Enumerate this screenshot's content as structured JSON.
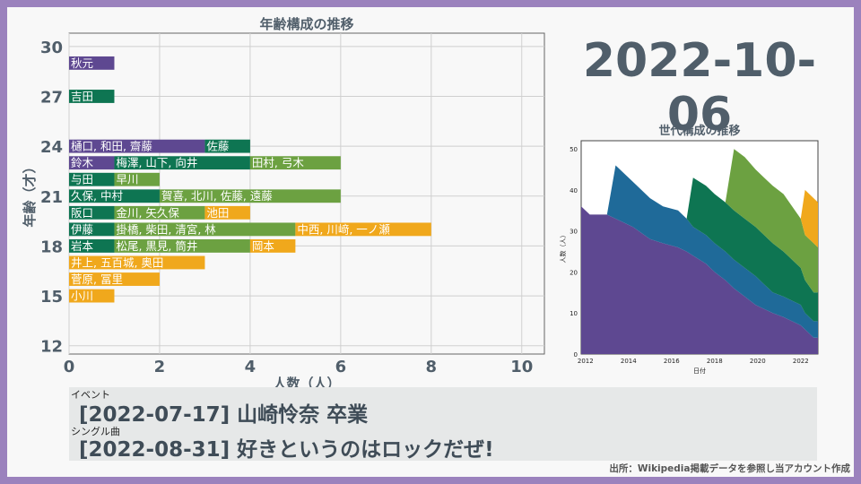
{
  "date": "2022-10-06",
  "events": [
    {
      "category": "イベント",
      "text": "[2022-07-17] 山崎怜奈 卒業"
    },
    {
      "category": "シングル曲",
      "text": "[2022-08-31] 好きというのはロックだぜ!"
    }
  ],
  "source": "出所：Wikipedia掲載データを参照し当アカウント作成",
  "colors": {
    "gen1": "#5e4891",
    "gen2": "#1f6a99",
    "gen3": "#0e7552",
    "gen4": "#6ca141",
    "gen5": "#f0a81c"
  },
  "chart_data": [
    {
      "type": "bar",
      "title": "年齢構成の推移",
      "xlabel": "人数（人）",
      "ylabel": "年齢（才）",
      "xlim": [
        0,
        10.5
      ],
      "ylim": [
        11.5,
        30.8
      ],
      "xticks": [
        0,
        2,
        4,
        6,
        8,
        10
      ],
      "yticks": [
        12,
        15,
        18,
        21,
        24,
        27,
        30
      ],
      "grid": true,
      "orientation": "horizontal-stacked",
      "bars": [
        {
          "age": 29,
          "segments": [
            {
              "gen": "gen1",
              "count": 1,
              "label": "秋元"
            }
          ]
        },
        {
          "age": 27,
          "segments": [
            {
              "gen": "gen3",
              "count": 1,
              "label": "吉田"
            }
          ]
        },
        {
          "age": 24,
          "segments": [
            {
              "gen": "gen1",
              "count": 3,
              "label": "樋口, 和田, 齋藤"
            },
            {
              "gen": "gen3",
              "count": 1,
              "label": "佐藤"
            }
          ]
        },
        {
          "age": 23,
          "segments": [
            {
              "gen": "gen1",
              "count": 1,
              "label": "鈴木"
            },
            {
              "gen": "gen3",
              "count": 3,
              "label": "梅澤, 山下, 向井"
            },
            {
              "gen": "gen4",
              "count": 2,
              "label": "田村, 弓木"
            }
          ]
        },
        {
          "age": 22,
          "segments": [
            {
              "gen": "gen3",
              "count": 1,
              "label": "与田"
            },
            {
              "gen": "gen4",
              "count": 1,
              "label": "早川"
            }
          ]
        },
        {
          "age": 21,
          "segments": [
            {
              "gen": "gen3",
              "count": 2,
              "label": "久保, 中村"
            },
            {
              "gen": "gen4",
              "count": 4,
              "label": "賀喜, 北川, 佐藤, 遠藤"
            }
          ]
        },
        {
          "age": 20,
          "segments": [
            {
              "gen": "gen3",
              "count": 1,
              "label": "阪口"
            },
            {
              "gen": "gen4",
              "count": 2,
              "label": "金川, 矢久保"
            },
            {
              "gen": "gen5",
              "count": 1,
              "label": "池田"
            }
          ]
        },
        {
          "age": 19,
          "segments": [
            {
              "gen": "gen3",
              "count": 1,
              "label": "伊藤"
            },
            {
              "gen": "gen4",
              "count": 4,
              "label": "掛橋, 柴田, 清宮, 林"
            },
            {
              "gen": "gen5",
              "count": 3,
              "label": "中西, 川﨑, 一ノ瀬"
            }
          ]
        },
        {
          "age": 18,
          "segments": [
            {
              "gen": "gen3",
              "count": 1,
              "label": "岩本"
            },
            {
              "gen": "gen4",
              "count": 3,
              "label": "松尾, 黒見, 筒井"
            },
            {
              "gen": "gen5",
              "count": 1,
              "label": "岡本"
            }
          ]
        },
        {
          "age": 17,
          "segments": [
            {
              "gen": "gen5",
              "count": 3,
              "label": "井上, 五百城, 奥田"
            }
          ]
        },
        {
          "age": 16,
          "segments": [
            {
              "gen": "gen5",
              "count": 2,
              "label": "菅原, 冨里"
            }
          ]
        },
        {
          "age": 15,
          "segments": [
            {
              "gen": "gen5",
              "count": 1,
              "label": "小川"
            }
          ]
        }
      ]
    },
    {
      "type": "area",
      "title": "世代構成の推移",
      "xlabel": "日付",
      "ylabel": "人数（人）",
      "xlim": [
        2011.8,
        2022.8
      ],
      "ylim": [
        0,
        52
      ],
      "xticks": [
        "2012",
        "2014",
        "2016",
        "2018",
        "2020",
        "2022"
      ],
      "yticks": [
        0,
        10,
        20,
        30,
        40,
        50
      ],
      "stacked": true,
      "x": [
        2011.8,
        2012.2,
        2013.0,
        2013.4,
        2014.2,
        2015.0,
        2015.6,
        2016.3,
        2016.7,
        2017.0,
        2017.6,
        2018.0,
        2018.5,
        2018.9,
        2019.4,
        2019.9,
        2020.3,
        2020.7,
        2021.2,
        2021.6,
        2022.0,
        2022.2,
        2022.6,
        2022.8
      ],
      "series": [
        {
          "gen": "gen1",
          "values": [
            36,
            34,
            34,
            33,
            31,
            28,
            27,
            26,
            25,
            24,
            22,
            20,
            18,
            16,
            14,
            12,
            11,
            10,
            9,
            8,
            7,
            6,
            4,
            4
          ]
        },
        {
          "gen": "gen2",
          "values": [
            0,
            0,
            0,
            13,
            11,
            10,
            9,
            9,
            8,
            7,
            7,
            7,
            7,
            7,
            7,
            7,
            6,
            5,
            5,
            5,
            5,
            4,
            4,
            4
          ]
        },
        {
          "gen": "gen3",
          "values": [
            0,
            0,
            0,
            0,
            0,
            0,
            0,
            0,
            0,
            12,
            12,
            12,
            12,
            12,
            12,
            12,
            12,
            12,
            11,
            10,
            9,
            8,
            7,
            7
          ]
        },
        {
          "gen": "gen4",
          "values": [
            0,
            0,
            0,
            0,
            0,
            0,
            0,
            0,
            0,
            0,
            0,
            0,
            0,
            15,
            15,
            14,
            14,
            14,
            14,
            13,
            12,
            11,
            12,
            11
          ]
        },
        {
          "gen": "gen5",
          "values": [
            0,
            0,
            0,
            0,
            0,
            0,
            0,
            0,
            0,
            0,
            0,
            0,
            0,
            0,
            0,
            0,
            0,
            0,
            0,
            0,
            0,
            11,
            11,
            11
          ]
        }
      ]
    }
  ]
}
